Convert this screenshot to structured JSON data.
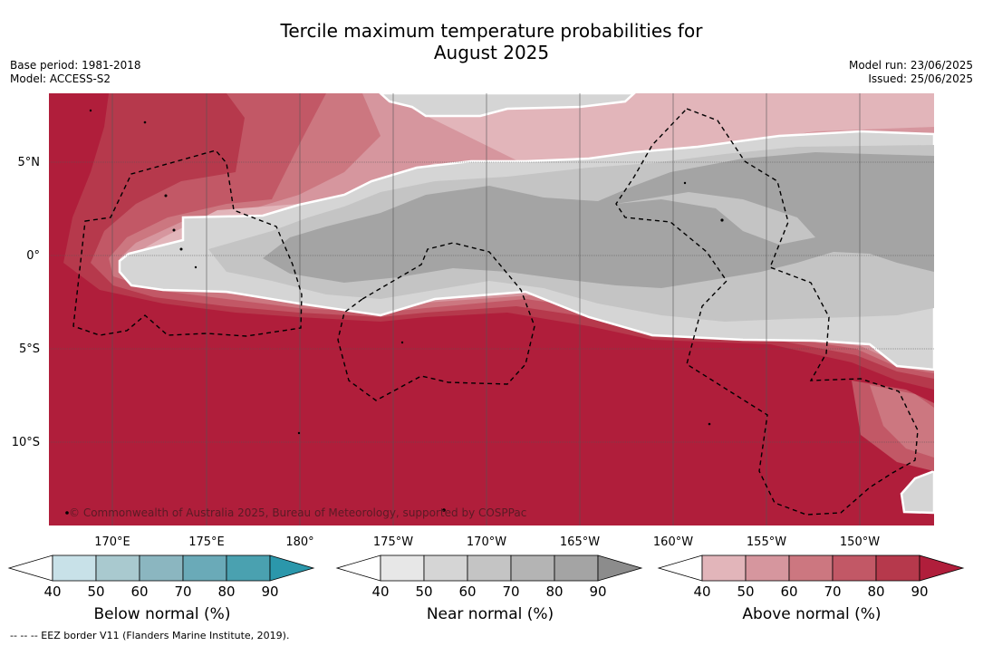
{
  "title_line1": "Tercile maximum temperature probabilities for",
  "title_line2": "August 2025",
  "base_period": "Base period: 1981-2018",
  "model": "Model: ACCESS-S2",
  "model_run": "Model run: 23/06/2025",
  "issued": "Issued: 25/06/2025",
  "copyright": "© Commonwealth of Australia 2025, Bureau of Meteorology, supported by COSPPac",
  "footer": "--  --  -- EEZ border V11 (Flanders Marine Institute, 2019).",
  "lat_labels": [
    "5°N",
    "0°",
    "5°S",
    "10°S"
  ],
  "lon_labels": [
    "170°E",
    "175°E",
    "180°",
    "175°W",
    "170°W",
    "165°W",
    "160°W",
    "155°W",
    "150°W"
  ],
  "legends": [
    {
      "title": "Below normal (%)",
      "ticks": [
        "40",
        "50",
        "60",
        "70",
        "80",
        "90"
      ],
      "colors": [
        "#ffffff",
        "#c8e1e8",
        "#a9c9cf",
        "#8bb6c0",
        "#6aaab8",
        "#4aa1b0",
        "#2b97ab"
      ]
    },
    {
      "title": "Near normal (%)",
      "ticks": [
        "40",
        "50",
        "60",
        "70",
        "80",
        "90"
      ],
      "colors": [
        "#ffffff",
        "#e7e7e7",
        "#d5d5d5",
        "#c4c4c4",
        "#b4b4b4",
        "#a4a4a4",
        "#8c8c8c"
      ]
    },
    {
      "title": "Above normal (%)",
      "ticks": [
        "40",
        "50",
        "60",
        "70",
        "80",
        "90"
      ],
      "colors": [
        "#ffffff",
        "#e2b5ba",
        "#d6969e",
        "#cc7780",
        "#c25866",
        "#b6394c",
        "#b01e3b"
      ]
    }
  ]
}
